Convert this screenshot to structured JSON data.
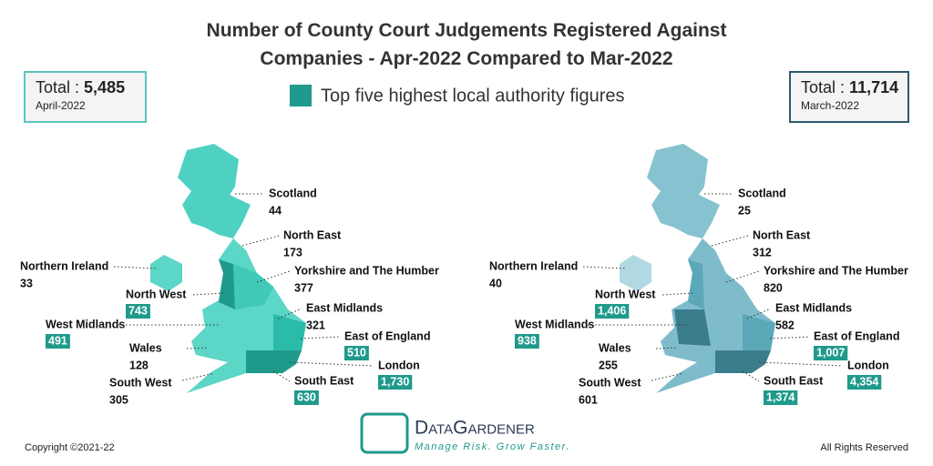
{
  "title": "Number of County Court Judgements Registered Against Companies - Apr-2022 Compared to Mar-2022",
  "legend": "Top five highest local authority figures",
  "maps": [
    {
      "total_label": "Total :",
      "total": "5,485",
      "period": "April-2022",
      "regions": [
        {
          "name": "Scotland",
          "value": "44",
          "highlight": false
        },
        {
          "name": "North East",
          "value": "173",
          "highlight": false
        },
        {
          "name": "Yorkshire and The Humber",
          "value": "377",
          "highlight": false
        },
        {
          "name": "East Midlands",
          "value": "321",
          "highlight": false
        },
        {
          "name": "East of England",
          "value": "510",
          "highlight": true
        },
        {
          "name": "London",
          "value": "1,730",
          "highlight": true
        },
        {
          "name": "South East",
          "value": "630",
          "highlight": true
        },
        {
          "name": "South West",
          "value": "305",
          "highlight": false
        },
        {
          "name": "Wales",
          "value": "128",
          "highlight": false
        },
        {
          "name": "West Midlands",
          "value": "491",
          "highlight": true
        },
        {
          "name": "North West",
          "value": "743",
          "highlight": true
        },
        {
          "name": "Northern Ireland",
          "value": "33",
          "highlight": false
        }
      ]
    },
    {
      "total_label": "Total :",
      "total": "11,714",
      "period": "March-2022",
      "regions": [
        {
          "name": "Scotland",
          "value": "25",
          "highlight": false
        },
        {
          "name": "North East",
          "value": "312",
          "highlight": false
        },
        {
          "name": "Yorkshire and The Humber",
          "value": "820",
          "highlight": false
        },
        {
          "name": "East Midlands",
          "value": "582",
          "highlight": false
        },
        {
          "name": "East of England",
          "value": "1,007",
          "highlight": true
        },
        {
          "name": "London",
          "value": "4,354",
          "highlight": true
        },
        {
          "name": "South East",
          "value": "1,374",
          "highlight": true
        },
        {
          "name": "South West",
          "value": "601",
          "highlight": false
        },
        {
          "name": "Wales",
          "value": "255",
          "highlight": false
        },
        {
          "name": "West Midlands",
          "value": "938",
          "highlight": true
        },
        {
          "name": "North West",
          "value": "1,406",
          "highlight": true
        },
        {
          "name": "Northern Ireland",
          "value": "40",
          "highlight": false
        }
      ]
    }
  ],
  "logo": {
    "name": "DataGardener",
    "tagline": "Manage Risk. Grow Faster."
  },
  "footer": {
    "copyright": "Copyright ©2021-22",
    "rights": "All Rights Reserved"
  }
}
